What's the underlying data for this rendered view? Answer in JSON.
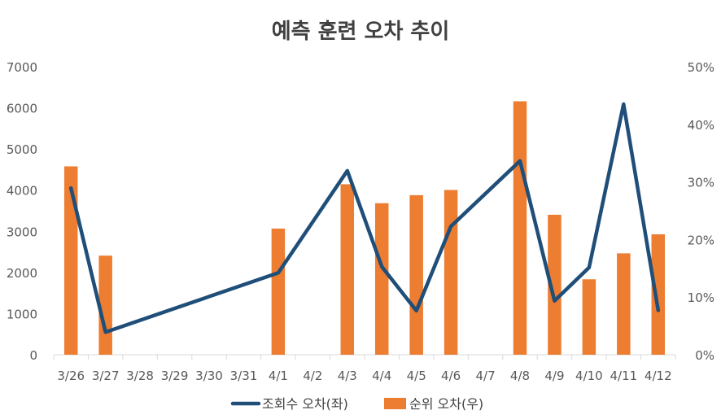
{
  "chart_data": {
    "type": "bar+line",
    "title": "예측 훈련 오차 추이",
    "categories": [
      "3/26",
      "3/27",
      "3/28",
      "3/29",
      "3/30",
      "3/31",
      "4/1",
      "4/2",
      "4/3",
      "4/4",
      "4/5",
      "4/6",
      "4/7",
      "4/8",
      "4/9",
      "4/10",
      "4/11",
      "4/12"
    ],
    "y_left": {
      "min": 0,
      "max": 7000,
      "ticks": [
        "0",
        "1000",
        "2000",
        "3000",
        "4000",
        "5000",
        "6000",
        "7000"
      ]
    },
    "y_right": {
      "min": 0,
      "max": 0.5,
      "ticks": [
        "0%",
        "10%",
        "20%",
        "30%",
        "40%",
        "50%"
      ]
    },
    "grid": false,
    "legend_position": "bottom",
    "series": [
      {
        "name": "조회수 오차(좌)",
        "type": "line",
        "axis": "left",
        "color": "#1f4e79",
        "values": [
          4050,
          550,
          null,
          null,
          null,
          null,
          1990,
          null,
          4470,
          2140,
          1070,
          3120,
          null,
          4710,
          1310,
          2120,
          6090,
          1080
        ]
      },
      {
        "name": "순위 오차(우)",
        "type": "bar",
        "axis": "right",
        "color": "#ed7d31",
        "values": [
          0.327,
          0.172,
          null,
          null,
          null,
          null,
          0.219,
          null,
          0.296,
          0.263,
          0.277,
          0.286,
          null,
          0.44,
          0.243,
          0.131,
          0.176,
          0.209
        ]
      }
    ]
  }
}
